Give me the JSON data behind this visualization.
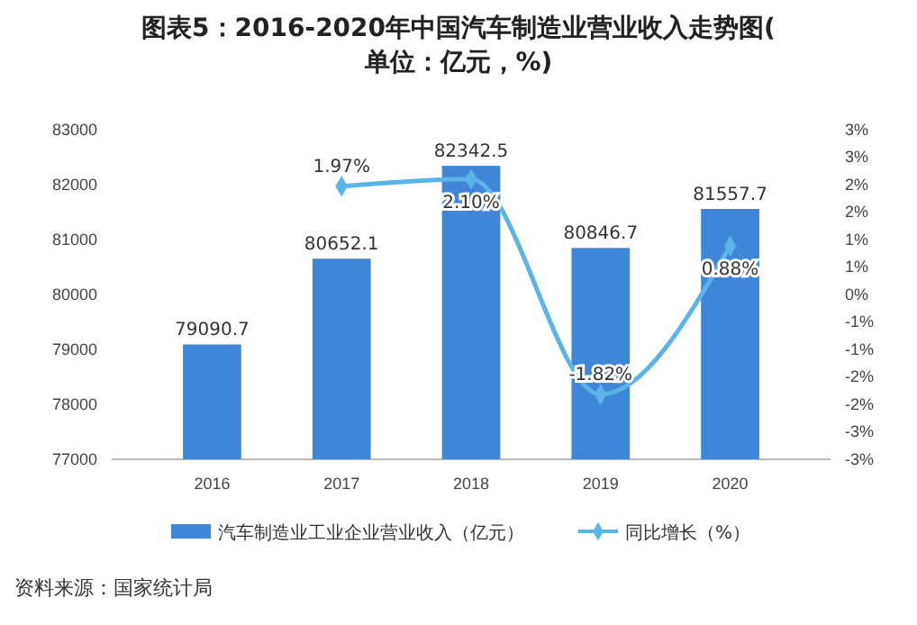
{
  "chart_data": {
    "type": "bar",
    "title": "图表5：2016-2020年中国汽车制造业营业收入走势图(单位：亿元，%)",
    "categories": [
      "2016",
      "2017",
      "2018",
      "2019",
      "2020"
    ],
    "series": [
      {
        "name": "汽车制造业工业企业营业收入（亿元）",
        "color": "#3f86d8",
        "values": [
          79090.7,
          80652.1,
          82342.5,
          80846.7,
          81557.7
        ],
        "value_labels": [
          "79090.7",
          "80652.1",
          "82342.5",
          "80846.7",
          "81557.7"
        ]
      },
      {
        "name": "同比增长（%）",
        "type": "line",
        "axis": "y2",
        "color": "#5ab4e5",
        "values": [
          null,
          1.97,
          2.1,
          -1.82,
          0.88
        ],
        "value_labels": [
          null,
          "1.97%",
          "2.10%",
          "-1.82%",
          "0.88%"
        ]
      }
    ],
    "ylim": [
      77000,
      83000
    ],
    "yticks": [
      77000,
      78000,
      79000,
      80000,
      81000,
      82000,
      83000
    ],
    "y2lim": [
      -3,
      3
    ],
    "y2ticks": [
      {
        "value": 3,
        "label": "3%"
      },
      {
        "value": 2.5,
        "label": "3%"
      },
      {
        "value": 2,
        "label": "2%"
      },
      {
        "value": 1.5,
        "label": "2%"
      },
      {
        "value": 1,
        "label": "1%"
      },
      {
        "value": 0.5,
        "label": "1%"
      },
      {
        "value": 0,
        "label": "0%"
      },
      {
        "value": -0.5,
        "label": "-1%"
      },
      {
        "value": -1,
        "label": "-1%"
      },
      {
        "value": -1.5,
        "label": "-2%"
      },
      {
        "value": -2,
        "label": "-2%"
      },
      {
        "value": -2.5,
        "label": "-3%"
      },
      {
        "value": -3,
        "label": "-3%"
      }
    ],
    "marker": "diamond",
    "line_style": "solid",
    "legend": "bottom",
    "grid": false,
    "annotations": [
      "资料来源：国家统计局"
    ]
  }
}
